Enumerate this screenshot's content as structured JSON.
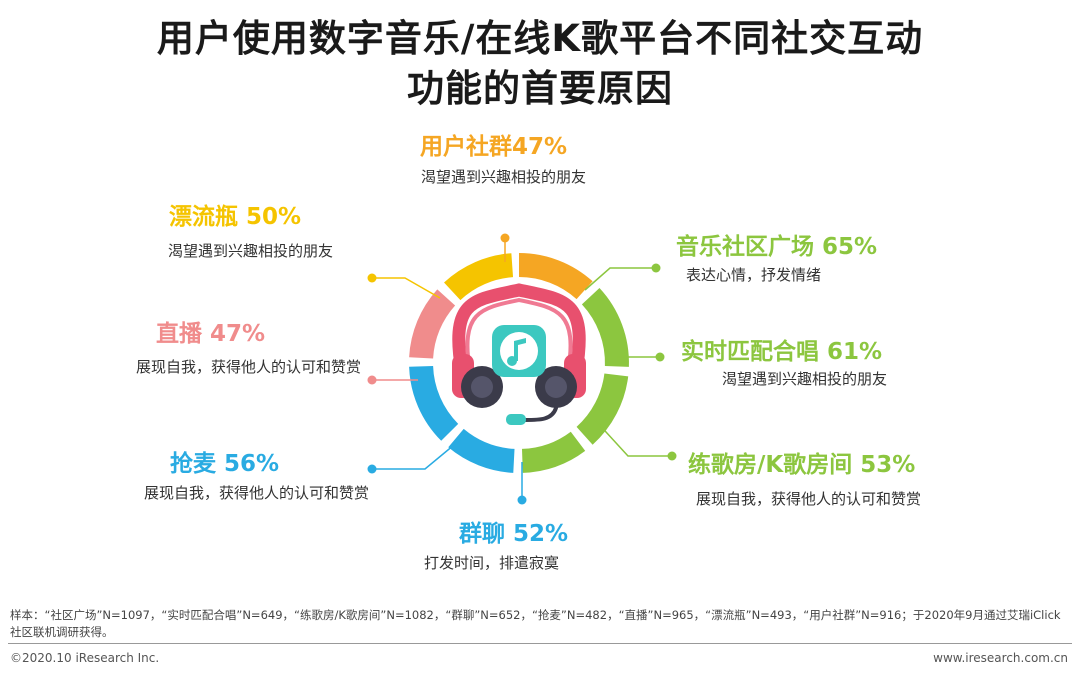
{
  "title": {
    "line1": "用户使用数字音乐/在线K歌平台不同社交互动",
    "line2": "功能的首要原因"
  },
  "chart_data": {
    "type": "radial-infographic",
    "items": [
      {
        "name": "用户社群",
        "value": 47,
        "display": "用户社群47%",
        "desc": "渴望遇到兴趣相投的朋友",
        "color": "#f5a623"
      },
      {
        "name": "音乐社区广场",
        "value": 65,
        "display": "音乐社区广场 65%",
        "desc": "表达心情，抒发情绪",
        "color": "#8cc63f"
      },
      {
        "name": "实时匹配合唱",
        "value": 61,
        "display": "实时匹配合唱 61%",
        "desc": "渴望遇到兴趣相投的朋友",
        "color": "#8cc63f"
      },
      {
        "name": "练歌房/K歌房间",
        "value": 53,
        "display": "练歌房/K歌房间 53%",
        "desc": "展现自我，获得他人的认可和赞赏",
        "color": "#8cc63f"
      },
      {
        "name": "群聊",
        "value": 52,
        "display": "群聊 52%",
        "desc": "打发时间，排遣寂寞",
        "color": "#29abe2"
      },
      {
        "name": "抢麦",
        "value": 56,
        "display": "抢麦 56%",
        "desc": "展现自我，获得他人的认可和赞赏",
        "color": "#29abe2"
      },
      {
        "name": "直播",
        "value": 47,
        "display": "直播 47%",
        "desc": "展现自我，获得他人的认可和赞赏",
        "color": "#f08c8c"
      },
      {
        "name": "漂流瓶",
        "value": 50,
        "display": "漂流瓶 50%",
        "desc": "渴望遇到兴趣相投的朋友",
        "color": "#f5c400"
      }
    ]
  },
  "footnote": "样本：“社区广场”N=1097，“实时匹配合唱”N=649，“练歌房/K歌房间”N=1082，“群聊”N=652，“抢麦”N=482，“直播”N=965，“漂流瓶”N=493，“用户社群”N=916；于2020年9月通过艾瑞iClick社区联机调研获得。",
  "copyright": "©2020.10 iResearch Inc.",
  "site": "www.iresearch.com.cn"
}
